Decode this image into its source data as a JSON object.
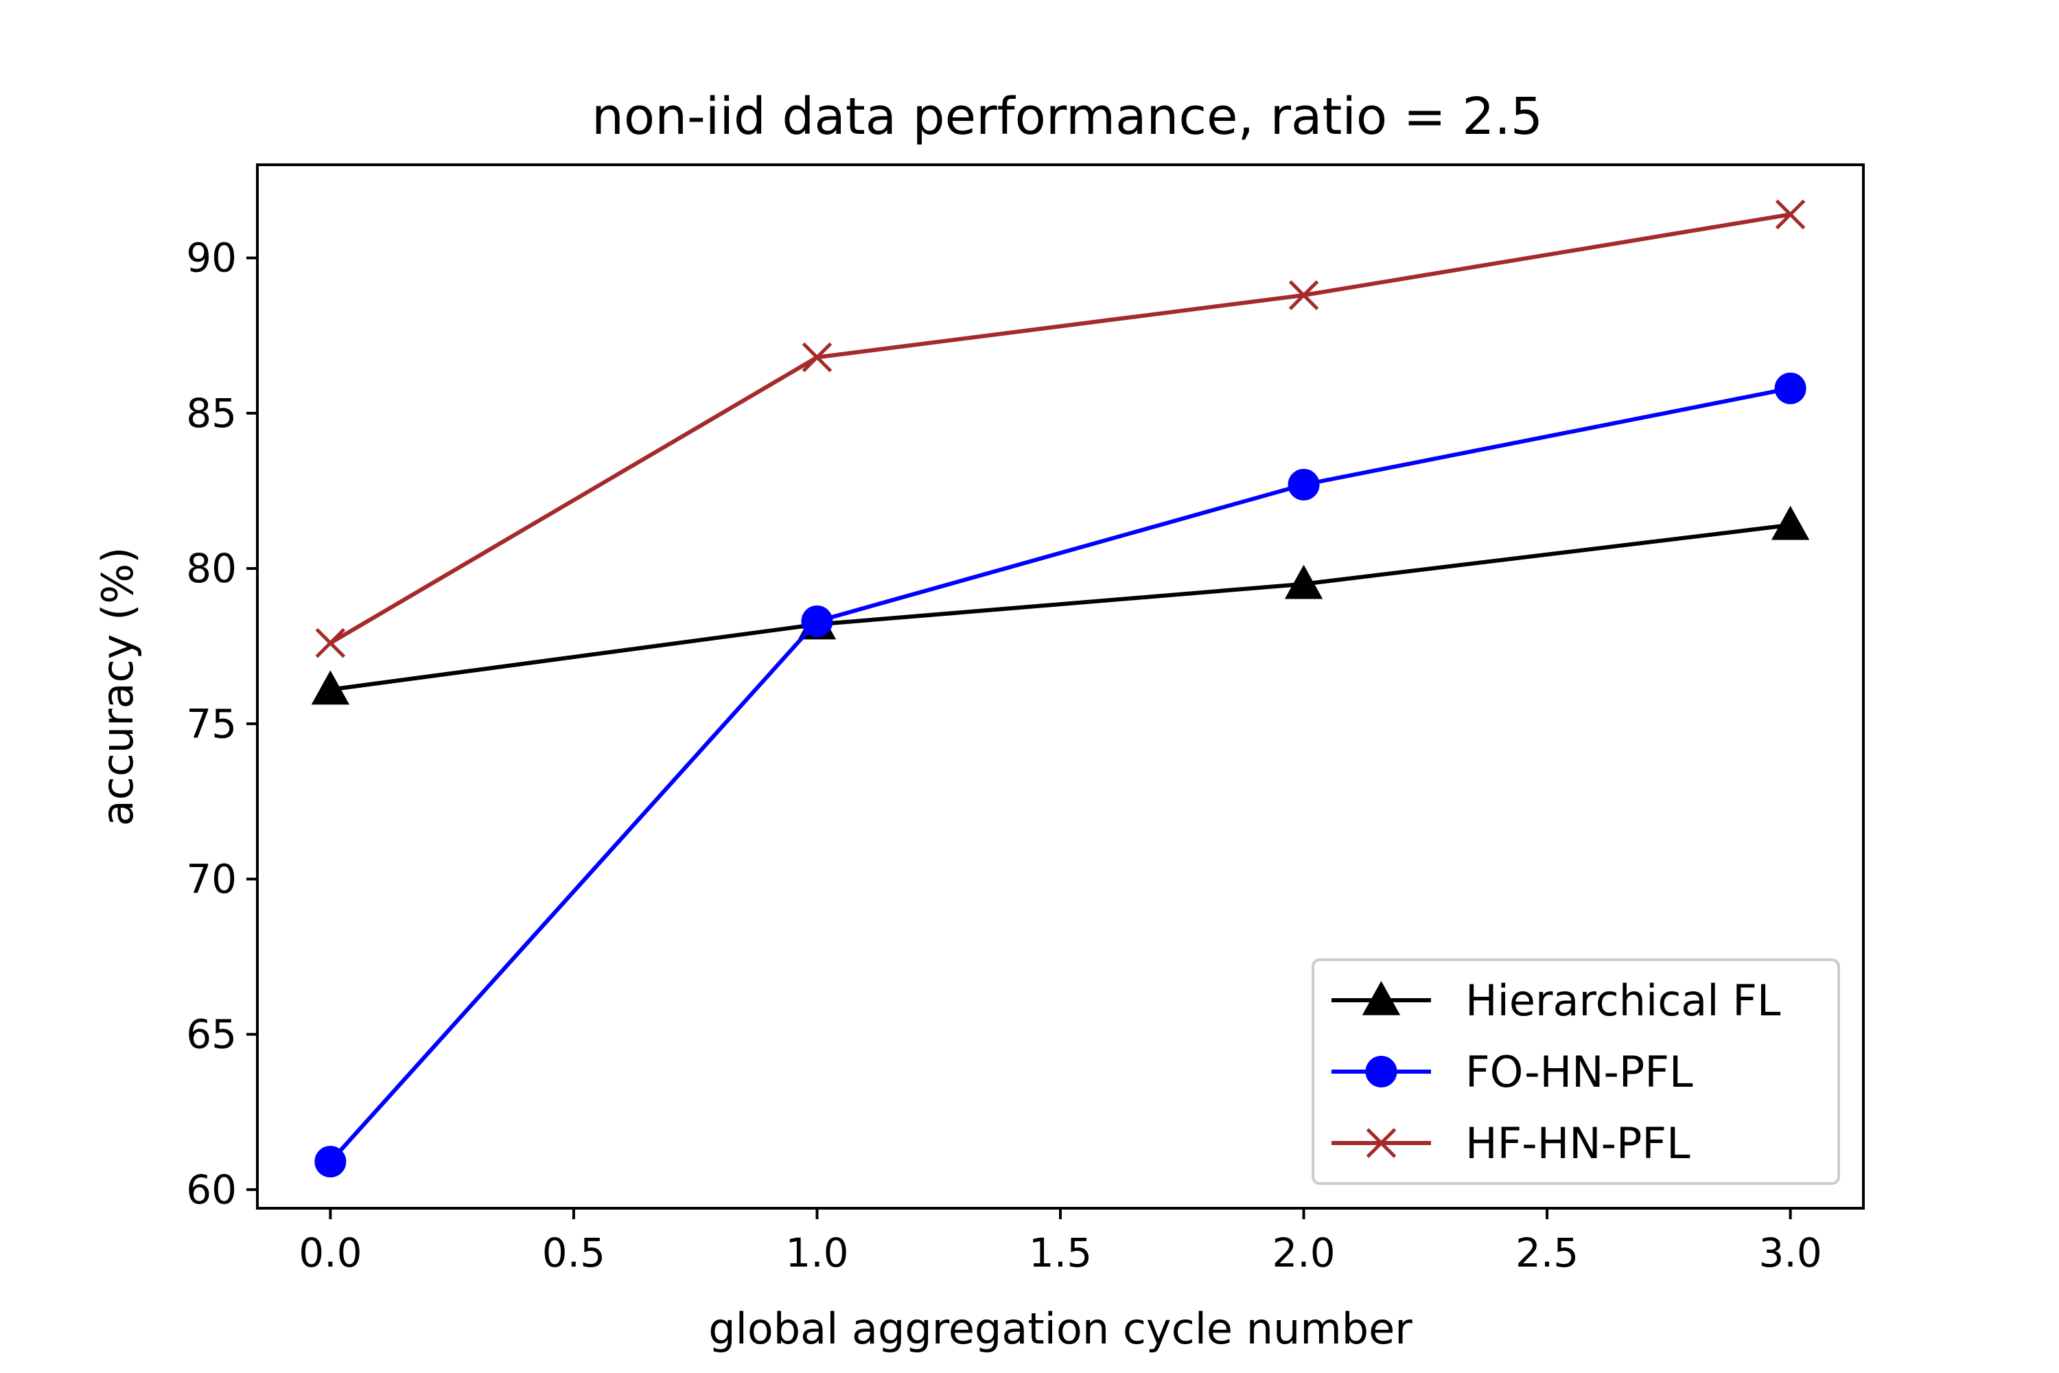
{
  "chart_data": {
    "type": "line",
    "title": "non-iid data performance, ratio = 2.5",
    "xlabel": "global aggregation cycle number",
    "ylabel": "accuracy (%)",
    "x": [
      0.0,
      1.0,
      2.0,
      3.0
    ],
    "xlim": [
      -0.15,
      3.15
    ],
    "ylim": [
      59.4,
      93.0
    ],
    "xticks": [
      0.0,
      0.5,
      1.0,
      1.5,
      2.0,
      2.5,
      3.0
    ],
    "xtick_labels": [
      "0.0",
      "0.5",
      "1.0",
      "1.5",
      "2.0",
      "2.5",
      "3.0"
    ],
    "yticks": [
      60,
      65,
      70,
      75,
      80,
      85,
      90
    ],
    "ytick_labels": [
      "60",
      "65",
      "70",
      "75",
      "80",
      "85",
      "90"
    ],
    "grid": false,
    "legend_position": "lower-right",
    "series": [
      {
        "name": "Hierarchical FL",
        "values": [
          76.1,
          78.2,
          79.5,
          81.4
        ],
        "color": "#000000",
        "marker": "triangle"
      },
      {
        "name": "FO-HN-PFL",
        "values": [
          60.9,
          78.3,
          82.7,
          85.8
        ],
        "color": "#0000ff",
        "marker": "circle"
      },
      {
        "name": "HF-HN-PFL",
        "values": [
          77.6,
          86.8,
          88.8,
          91.4
        ],
        "color": "#a52a2a",
        "marker": "x"
      }
    ]
  }
}
